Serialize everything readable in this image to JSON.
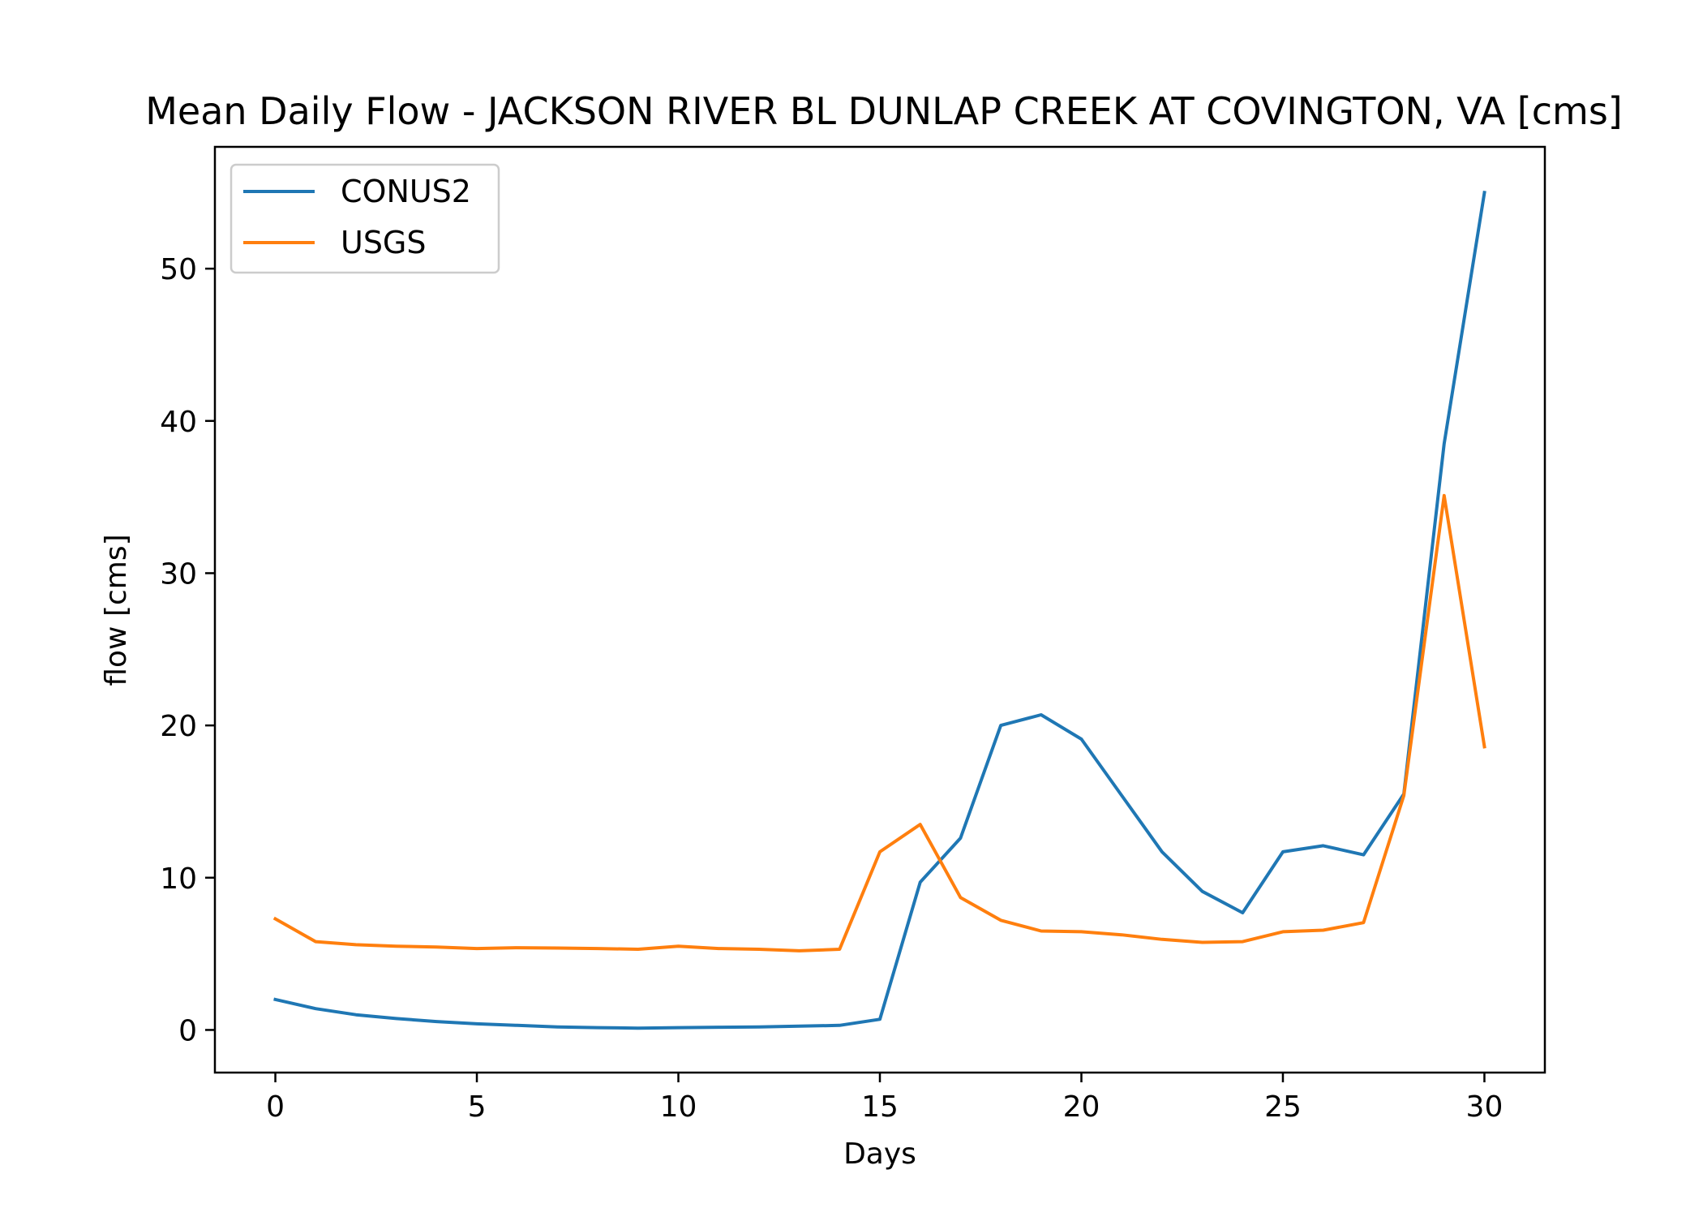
{
  "chart_data": {
    "type": "line",
    "title": "Mean Daily Flow - JACKSON RIVER BL DUNLAP CREEK AT COVINGTON, VA [cms]",
    "xlabel": "Days",
    "ylabel": "flow [cms]",
    "xlim": [
      -1.5,
      31.5
    ],
    "ylim": [
      -2.8,
      58
    ],
    "xticks": [
      0,
      5,
      10,
      15,
      20,
      25,
      30
    ],
    "yticks": [
      0,
      10,
      20,
      30,
      40,
      50
    ],
    "grid": false,
    "legend_position": "top-left",
    "x": [
      0,
      1,
      2,
      3,
      4,
      5,
      6,
      7,
      8,
      9,
      10,
      11,
      12,
      13,
      14,
      15,
      16,
      17,
      18,
      19,
      20,
      21,
      22,
      23,
      24,
      25,
      26,
      27,
      28,
      29,
      30
    ],
    "series": [
      {
        "name": "CONUS2",
        "color": "#1f77b4",
        "values": [
          2.0,
          1.4,
          1.0,
          0.75,
          0.55,
          0.4,
          0.3,
          0.2,
          0.15,
          0.12,
          0.15,
          0.18,
          0.2,
          0.25,
          0.3,
          0.7,
          9.7,
          12.6,
          20.0,
          20.7,
          19.1,
          15.4,
          11.7,
          9.1,
          7.7,
          11.7,
          12.1,
          11.5,
          15.5,
          38.5,
          55.0
        ]
      },
      {
        "name": "USGS",
        "color": "#ff7f0e",
        "values": [
          7.3,
          5.8,
          5.6,
          5.5,
          5.45,
          5.35,
          5.4,
          5.38,
          5.35,
          5.3,
          5.5,
          5.35,
          5.3,
          5.2,
          5.3,
          11.7,
          13.5,
          8.7,
          7.2,
          6.5,
          6.45,
          6.25,
          5.95,
          5.75,
          5.8,
          6.45,
          6.55,
          7.05,
          15.4,
          35.1,
          18.6
        ]
      }
    ]
  }
}
